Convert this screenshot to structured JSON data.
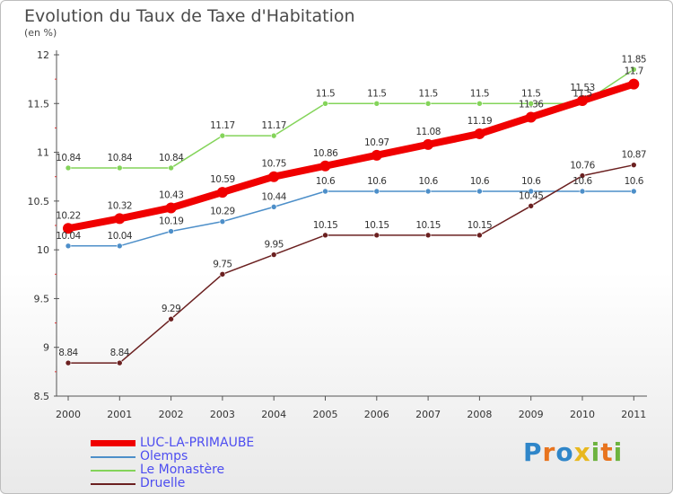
{
  "header": {
    "title": "Evolution du Taux de Taxe d'Habitation",
    "subtitle": "(en %)"
  },
  "brand": {
    "text": "Proxiti",
    "letter_colors": [
      "#2f86c9",
      "#e8741e",
      "#2f86c9",
      "#e8b81e",
      "#6db33f",
      "#e8741e",
      "#6db33f"
    ]
  },
  "chart_data": {
    "type": "line",
    "title": "Evolution du Taux de Taxe d'Habitation",
    "subtitle": "(en %)",
    "xlabel": "",
    "ylabel": "",
    "x": [
      "2000",
      "2001",
      "2002",
      "2003",
      "2004",
      "2005",
      "2006",
      "2007",
      "2008",
      "2009",
      "2010",
      "2011"
    ],
    "ylim": [
      8.5,
      12
    ],
    "yticks": [
      "8.5",
      "9",
      "9.5",
      "10",
      "10.5",
      "11",
      "11.5",
      "12"
    ],
    "grid": false,
    "legend_position": "bottom-left",
    "series": [
      {
        "name": "LUC-LA-PRIMAUBE",
        "color": "#f00000",
        "values": [
          10.22,
          10.32,
          10.43,
          10.59,
          10.75,
          10.86,
          10.97,
          11.08,
          11.19,
          11.36,
          11.53,
          11.7
        ],
        "labels": [
          "10.22",
          "10.32",
          "10.43",
          "10.59",
          "10.75",
          "10.86",
          "10.97",
          "11.08",
          "11.19",
          "11.36",
          "11.53",
          "11.7"
        ]
      },
      {
        "name": "Olemps",
        "color": "#4d8fc9",
        "values": [
          10.04,
          10.04,
          10.19,
          10.29,
          10.44,
          10.6,
          10.6,
          10.6,
          10.6,
          10.6,
          10.6,
          10.6
        ],
        "labels": [
          "10.04",
          "10.04",
          "10.19",
          "10.29",
          "10.44",
          "10.6",
          "10.6",
          "10.6",
          "10.6",
          "10.6",
          "10.6",
          "10.6"
        ]
      },
      {
        "name": "Le Monastère",
        "color": "#84d45a",
        "values": [
          10.84,
          10.84,
          10.84,
          11.17,
          11.17,
          11.5,
          11.5,
          11.5,
          11.5,
          11.5,
          11.5,
          11.85
        ],
        "labels": [
          "10.84",
          "10.84",
          "10.84",
          "11.17",
          "11.17",
          "11.5",
          "11.5",
          "11.5",
          "11.5",
          "11.5",
          "11.5",
          "11.85"
        ]
      },
      {
        "name": "Druelle",
        "color": "#6b2020",
        "values": [
          8.84,
          8.84,
          9.29,
          9.75,
          9.95,
          10.15,
          10.15,
          10.15,
          10.15,
          10.45,
          10.76,
          10.87
        ],
        "labels": [
          "8.84",
          "8.84",
          "9.29",
          "9.75",
          "9.95",
          "10.15",
          "10.15",
          "10.15",
          "10.15",
          "10.45",
          "10.76",
          "10.87"
        ]
      }
    ]
  }
}
